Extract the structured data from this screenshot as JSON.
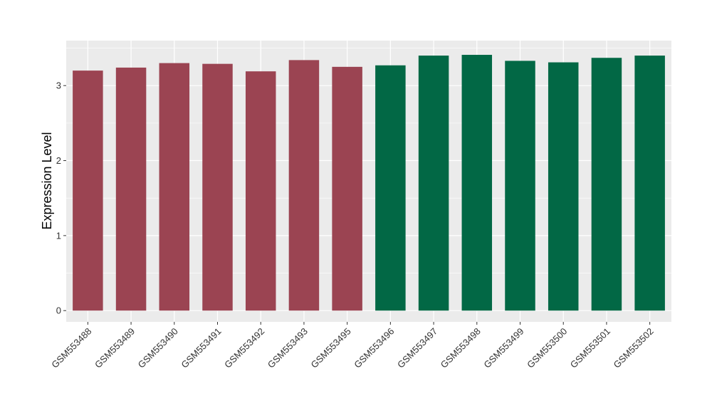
{
  "chart_data": {
    "type": "bar",
    "title": "",
    "xlabel": "",
    "ylabel": "Expression Level",
    "ylim": [
      -0.15,
      3.6
    ],
    "yticks": [
      0,
      1,
      2,
      3
    ],
    "grid": true,
    "categories": [
      "GSM553488",
      "GSM553489",
      "GSM553490",
      "GSM553491",
      "GSM553492",
      "GSM553493",
      "GSM553495",
      "GSM553496",
      "GSM553497",
      "GSM553498",
      "GSM553499",
      "GSM553500",
      "GSM553501",
      "GSM553502"
    ],
    "values": [
      3.2,
      3.24,
      3.3,
      3.29,
      3.19,
      3.34,
      3.25,
      3.27,
      3.4,
      3.41,
      3.33,
      3.31,
      3.37,
      3.4
    ],
    "bar_colors": [
      "#9b4452",
      "#9b4452",
      "#9b4452",
      "#9b4452",
      "#9b4452",
      "#9b4452",
      "#9b4452",
      "#026845",
      "#026845",
      "#026845",
      "#026845",
      "#026845",
      "#026845",
      "#026845"
    ],
    "panel_background": "#ebebeb",
    "grid_color": "#ffffff"
  }
}
